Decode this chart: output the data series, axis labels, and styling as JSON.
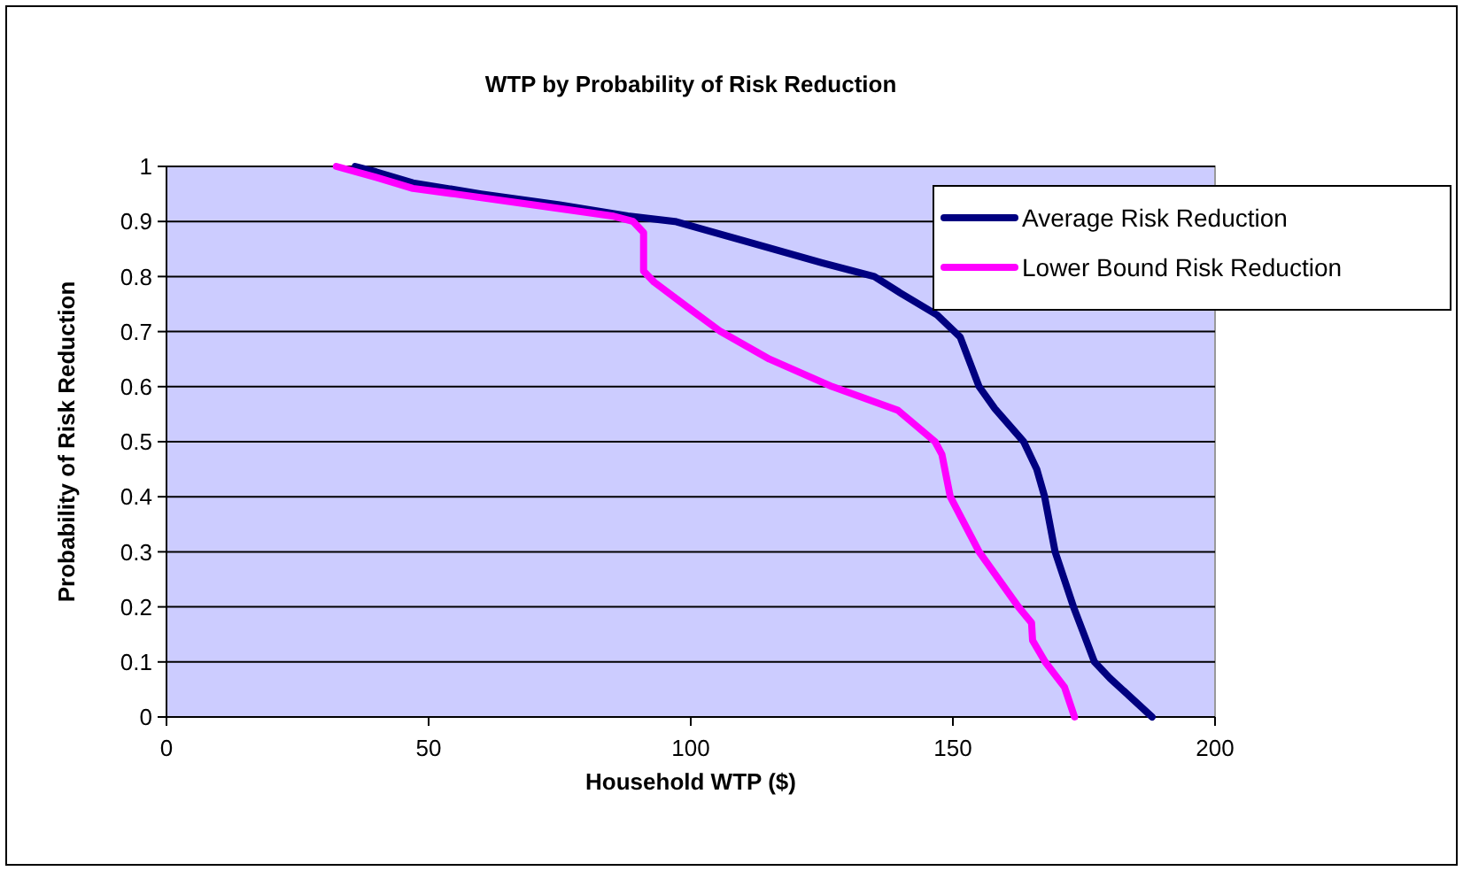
{
  "chart_data": {
    "type": "line",
    "title": "WTP by Probability of Risk Reduction",
    "xlabel": "Household WTP ($)",
    "ylabel": "Probability of Risk Reduction",
    "xlim": [
      0,
      200
    ],
    "xticks": [
      0,
      50,
      100,
      150,
      200
    ],
    "ylim": [
      0,
      1
    ],
    "yticks": [
      0,
      0.1,
      0.2,
      0.3,
      0.4,
      0.5,
      0.6,
      0.7,
      0.8,
      0.9,
      1
    ],
    "grid": "y",
    "legend": "top right",
    "marker": "none",
    "line_style": "solid",
    "series": [
      {
        "name": "Average Risk Reduction",
        "color": "#000080",
        "x": [
          36,
          40,
          47,
          60,
          75,
          88,
          97,
          112,
          125,
          135,
          140,
          147,
          151.4,
          155,
          158,
          163.5,
          166,
          167.5,
          169.5,
          173,
          175,
          177,
          180,
          188
        ],
        "values": [
          1,
          0.99,
          0.97,
          0.95,
          0.93,
          0.91,
          0.9,
          0.86,
          0.825,
          0.8,
          0.77,
          0.73,
          0.69,
          0.6,
          0.56,
          0.5,
          0.45,
          0.4,
          0.3,
          0.2,
          0.15,
          0.1,
          0.07,
          0
        ]
      },
      {
        "name": "Lower Bound Risk Reduction",
        "color": "#ff00ff",
        "x": [
          32.4,
          40,
          47,
          55,
          70,
          85,
          89,
          91,
          91,
          93,
          100,
          105.7,
          115,
          127,
          139.5,
          146.6,
          147.9,
          149.5,
          155,
          162.5,
          165,
          165.2,
          167.6,
          171.3,
          173.2
        ],
        "values": [
          1,
          0.98,
          0.96,
          0.95,
          0.93,
          0.91,
          0.9,
          0.88,
          0.81,
          0.79,
          0.74,
          0.7,
          0.65,
          0.6,
          0.557,
          0.5,
          0.477,
          0.4,
          0.3,
          0.2,
          0.171,
          0.139,
          0.1,
          0.054,
          0
        ]
      }
    ]
  }
}
